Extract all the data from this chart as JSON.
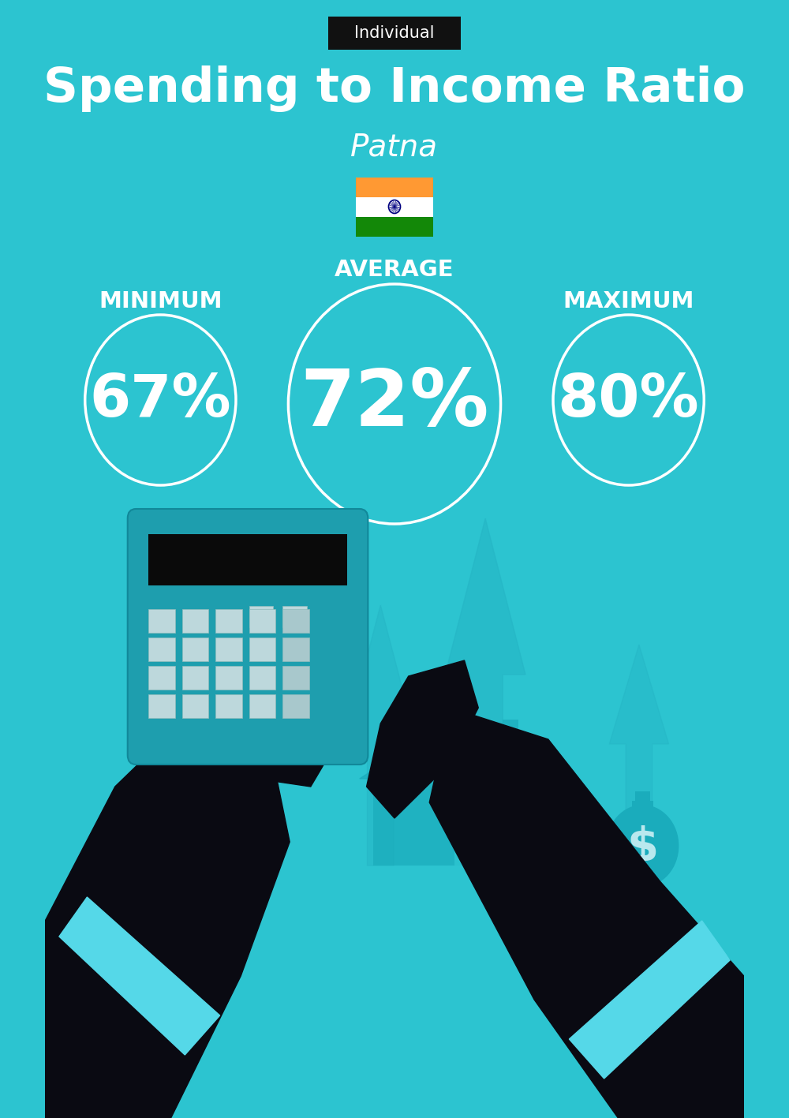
{
  "bg_color": "#2CC4D0",
  "title": "Spending to Income Ratio",
  "subtitle": "Patna",
  "label_tag": "Individual",
  "label_tag_bg": "#111111",
  "label_tag_color": "#ffffff",
  "avg_label": "AVERAGE",
  "min_label": "MINIMUM",
  "max_label": "MAXIMUM",
  "avg_value": "72%",
  "min_value": "67%",
  "max_value": "80%",
  "circle_color": "white",
  "text_color": "white",
  "title_fontsize": 44,
  "subtitle_fontsize": 28,
  "value_fontsize_large": 72,
  "value_fontsize_small": 54,
  "label_fontsize": 21,
  "tag_fontsize": 15,
  "flag_saffron": "#FF9933",
  "flag_white": "#FFFFFF",
  "flag_green": "#138808",
  "flag_navy": "#000080",
  "arrow_color": "#25B5C5",
  "dark_color": "#0a0a12",
  "calc_body_color": "#1E9EAE",
  "house_color": "#1AABBB",
  "sleeve_color": "#55D8E8"
}
